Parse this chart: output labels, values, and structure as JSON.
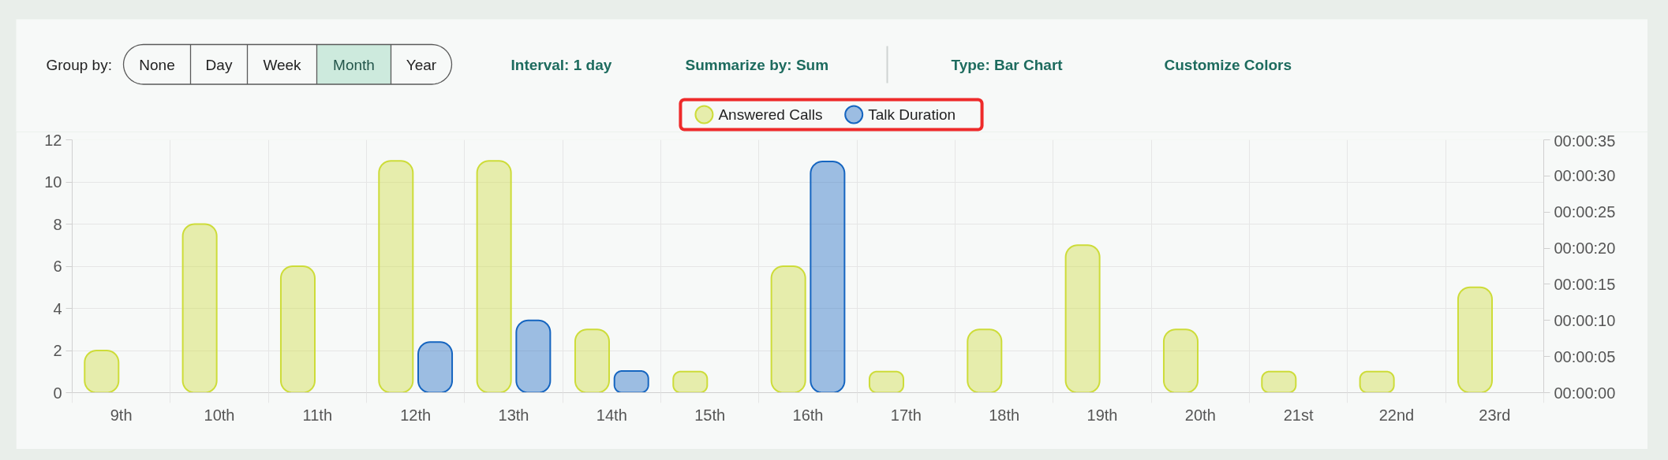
{
  "chart_data": {
    "type": "bar",
    "categories": [
      "9th",
      "10th",
      "11th",
      "12th",
      "13th",
      "14th",
      "15th",
      "16th",
      "17th",
      "18th",
      "19th",
      "20th",
      "21st",
      "22nd",
      "23rd"
    ],
    "series": [
      {
        "name": "Answered Calls",
        "color": "#cddc39",
        "values": [
          2,
          8,
          6,
          11,
          11,
          3,
          1,
          6,
          1,
          3,
          7,
          3,
          1,
          1,
          5
        ]
      },
      {
        "name": "Talk Duration",
        "color": "#1565c0",
        "axis": "y2",
        "values": [
          null,
          null,
          null,
          7,
          10,
          3,
          null,
          32,
          null,
          null,
          null,
          null,
          null,
          null,
          null
        ]
      }
    ],
    "ylim": [
      0,
      12
    ],
    "yticks": [
      0,
      2,
      4,
      6,
      8,
      10,
      12
    ],
    "y2lim": [
      0,
      35
    ],
    "y2ticks": [
      {
        "value": 0,
        "label": "00:00:00"
      },
      {
        "value": 5,
        "label": "00:00:05"
      },
      {
        "value": 10,
        "label": "00:00:10"
      },
      {
        "value": 15,
        "label": "00:00:15"
      },
      {
        "value": 20,
        "label": "00:00:20"
      },
      {
        "value": 25,
        "label": "00:00:25"
      },
      {
        "value": 30,
        "label": "00:00:30"
      },
      {
        "value": 35,
        "label": "00:00:35"
      }
    ],
    "grid": true,
    "legend": "top",
    "annotations": [
      "Group by:",
      "None",
      "Day",
      "Week",
      "Month",
      "Year",
      "Interval: 1 day",
      "Summarize by: Sum",
      "Type: Bar Chart",
      "Customize Colors"
    ]
  }
}
